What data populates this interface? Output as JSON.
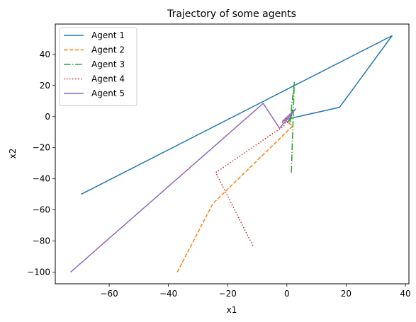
{
  "chart_data": {
    "type": "line",
    "title": "Trajectory of some agents",
    "xlabel": "x1",
    "ylabel": "x2",
    "xlim": [
      -78.2,
      41.2
    ],
    "ylim": [
      -107.5,
      59.5
    ],
    "xticks": [
      -60,
      -40,
      -20,
      0,
      20,
      40
    ],
    "yticks": [
      -100,
      -80,
      -60,
      -40,
      -20,
      0,
      20,
      40
    ],
    "xtick_labels": [
      "−60",
      "−40",
      "−20",
      "0",
      "20",
      "40"
    ],
    "ytick_labels": [
      "−100",
      "−80",
      "−60",
      "−40",
      "−20",
      "0",
      "20",
      "40"
    ],
    "grid": false,
    "legend_position": "top-left",
    "series": [
      {
        "name": "Agent 1",
        "color": "#1f77b4",
        "dash": "solid",
        "x": [
          -69.5,
          35.5,
          17.8,
          1.5,
          0.5,
          0.0
        ],
        "y": [
          -50.0,
          52.0,
          6.0,
          -1.0,
          -3.0,
          -4.0
        ]
      },
      {
        "name": "Agent 2",
        "color": "#ff7f0e",
        "dash": "dashed",
        "x": [
          -37.0,
          -25.0,
          2.0,
          0.5,
          -0.5
        ],
        "y": [
          -100.0,
          -56.0,
          -6.0,
          -4.0,
          -2.0
        ]
      },
      {
        "name": "Agent 3",
        "color": "#2ca02c",
        "dash": "dashdot",
        "x": [
          1.5,
          2.5,
          1.0,
          2.0,
          0.5,
          1.5
        ],
        "y": [
          -36.0,
          22.0,
          -4.0,
          5.0,
          -3.0,
          0.0
        ]
      },
      {
        "name": "Agent 4",
        "color": "#d62728",
        "dash": "dotted",
        "x": [
          -11.5,
          -24.0,
          -1.0,
          0.0,
          -1.5,
          1.0
        ],
        "y": [
          -83.0,
          -36.0,
          -6.0,
          -1.0,
          -4.0,
          -3.0
        ]
      },
      {
        "name": "Agent 5",
        "color": "#9467bd",
        "dash": "solid",
        "x": [
          -73.0,
          -8.0,
          -2.5,
          3.0,
          -1.5,
          1.0
        ],
        "y": [
          -100.0,
          8.5,
          -7.5,
          5.0,
          -3.0,
          -1.0
        ]
      }
    ]
  }
}
